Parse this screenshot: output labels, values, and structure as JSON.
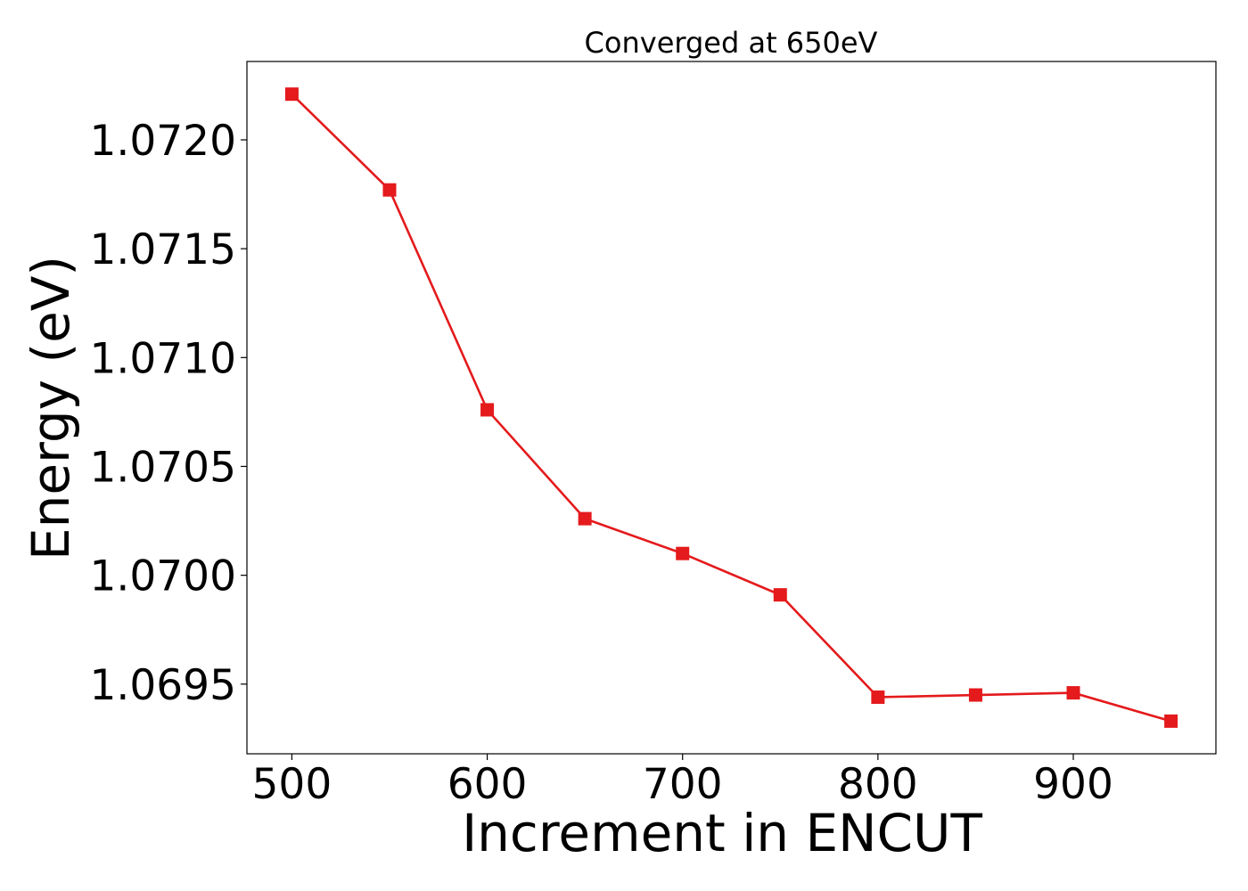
{
  "chart_data": {
    "type": "line",
    "title": "Converged at 650eV",
    "xlabel": "Increment in ENCUT",
    "ylabel": "Energy (eV)",
    "xlim": [
      477,
      973
    ],
    "ylim": [
      1.06918,
      1.07236
    ],
    "xticks": [
      500,
      600,
      700,
      800,
      900
    ],
    "xtick_labels": [
      "500",
      "600",
      "700",
      "800",
      "900"
    ],
    "yticks": [
      1.0695,
      1.07,
      1.0705,
      1.071,
      1.0715,
      1.072
    ],
    "ytick_labels": [
      "1.0695",
      "1.0700",
      "1.0705",
      "1.0710",
      "1.0715",
      "1.0720"
    ],
    "grid": false,
    "series": [
      {
        "color": "#e41a1c",
        "marker": "square",
        "x": [
          500,
          550,
          600,
          650,
          700,
          750,
          800,
          850,
          900,
          950
        ],
        "y": [
          1.07221,
          1.07177,
          1.07076,
          1.07026,
          1.0701,
          1.06991,
          1.06944,
          1.06945,
          1.06946,
          1.06933
        ]
      }
    ]
  }
}
